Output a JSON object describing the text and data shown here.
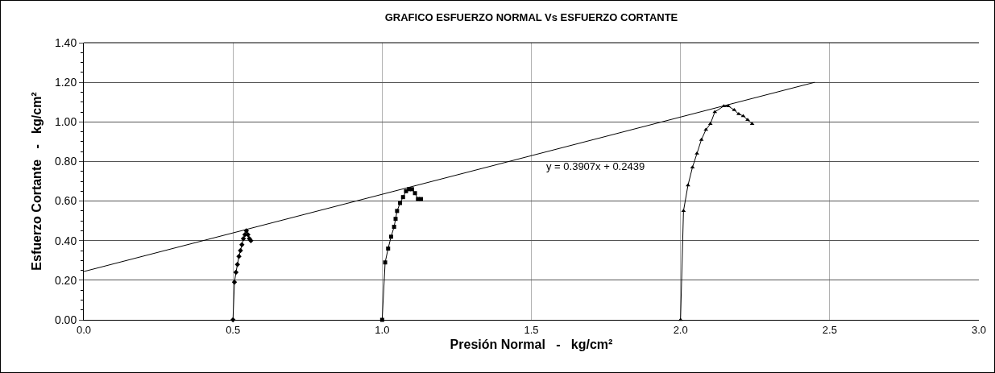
{
  "chart_data": {
    "type": "line",
    "title": "GRAFICO ESFUERZO NORMAL Vs ESFUERZO CORTANTE",
    "xlabel": "Presión Normal   -   kg/cm²",
    "ylabel": "Esfuerzo Cortante   -   kg/cm²",
    "xlim": [
      0,
      3
    ],
    "xticks": [
      {
        "value": 0,
        "label": "0.0"
      },
      {
        "value": 0.5,
        "label": "0.5"
      },
      {
        "value": 1,
        "label": "1.0"
      },
      {
        "value": 1.5,
        "label": "1.5"
      },
      {
        "value": 2,
        "label": "2.0"
      },
      {
        "value": 2.5,
        "label": "2.5"
      },
      {
        "value": 3,
        "label": "3.0"
      }
    ],
    "ylim": [
      0,
      1.4
    ],
    "yticks": [
      {
        "value": 0,
        "label": "0.00"
      },
      {
        "value": 0.2,
        "label": "0.20"
      },
      {
        "value": 0.4,
        "label": "0.40"
      },
      {
        "value": 0.6,
        "label": "0.60"
      },
      {
        "value": 0.8,
        "label": "0.80"
      },
      {
        "value": 1,
        "label": "1.00"
      },
      {
        "value": 1.2,
        "label": "1.20"
      },
      {
        "value": 1.4,
        "label": "1.40"
      }
    ],
    "grid": true,
    "line_style": "solid",
    "series": [
      {
        "color": "#000000",
        "marker": "diamond",
        "x": [
          0.5,
          0.505,
          0.51,
          0.515,
          0.52,
          0.525,
          0.53,
          0.535,
          0.54,
          0.545,
          0.55,
          0.555,
          0.56
        ],
        "values": [
          0,
          0.19,
          0.24,
          0.28,
          0.32,
          0.35,
          0.38,
          0.41,
          0.43,
          0.45,
          0.43,
          0.41,
          0.4
        ]
      },
      {
        "color": "#000000",
        "marker": "square",
        "x": [
          1.0,
          1.01,
          1.02,
          1.03,
          1.04,
          1.045,
          1.05,
          1.06,
          1.07,
          1.08,
          1.09,
          1.1,
          1.11,
          1.12,
          1.13
        ],
        "values": [
          0,
          0.29,
          0.36,
          0.42,
          0.47,
          0.51,
          0.55,
          0.59,
          0.62,
          0.65,
          0.66,
          0.66,
          0.64,
          0.61,
          0.61
        ]
      },
      {
        "color": "#000000",
        "marker": "triangle",
        "x": [
          2.0,
          2.01,
          2.025,
          2.04,
          2.055,
          2.07,
          2.085,
          2.1,
          2.115,
          2.145,
          2.16,
          2.18,
          2.195,
          2.21,
          2.225,
          2.24
        ],
        "values": [
          0,
          0.55,
          0.68,
          0.77,
          0.84,
          0.91,
          0.96,
          0.99,
          1.05,
          1.08,
          1.08,
          1.06,
          1.04,
          1.03,
          1.01,
          0.99
        ]
      },
      {
        "type": "line",
        "color": "#000000",
        "marker": "none",
        "x": [
          0,
          2.45
        ],
        "values": [
          0.244,
          1.2
        ]
      }
    ],
    "annotations": [
      "y = 0.3907x + 0.2439"
    ]
  }
}
